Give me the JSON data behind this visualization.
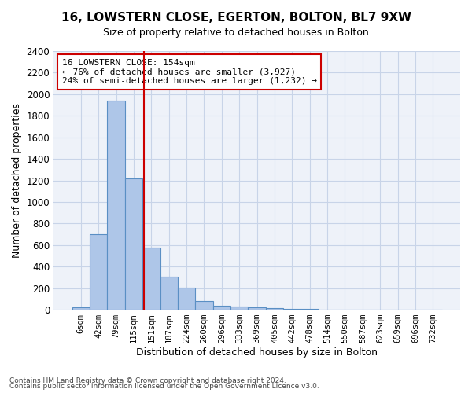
{
  "title1": "16, LOWSTERN CLOSE, EGERTON, BOLTON, BL7 9XW",
  "title2": "Size of property relative to detached houses in Bolton",
  "xlabel": "Distribution of detached houses by size in Bolton",
  "ylabel": "Number of detached properties",
  "bin_labels": [
    "6sqm",
    "42sqm",
    "79sqm",
    "115sqm",
    "151sqm",
    "187sqm",
    "224sqm",
    "260sqm",
    "296sqm",
    "333sqm",
    "369sqm",
    "405sqm",
    "442sqm",
    "478sqm",
    "514sqm",
    "550sqm",
    "587sqm",
    "623sqm",
    "659sqm",
    "696sqm",
    "732sqm"
  ],
  "bar_values": [
    20,
    700,
    1940,
    1220,
    575,
    305,
    205,
    80,
    40,
    28,
    22,
    15,
    8,
    5,
    3,
    2,
    1,
    1,
    1,
    0,
    0
  ],
  "bar_color": "#aec6e8",
  "bar_edge_color": "#5a8fc4",
  "annotation_title": "16 LOWSTERN CLOSE: 154sqm",
  "annotation_line1": "← 76% of detached houses are smaller (3,927)",
  "annotation_line2": "24% of semi-detached houses are larger (1,232) →",
  "vline_color": "#cc0000",
  "ylim": [
    0,
    2400
  ],
  "yticks": [
    0,
    200,
    400,
    600,
    800,
    1000,
    1200,
    1400,
    1600,
    1800,
    2000,
    2200,
    2400
  ],
  "footnote1": "Contains HM Land Registry data © Crown copyright and database right 2024.",
  "footnote2": "Contains public sector information licensed under the Open Government Licence v3.0.",
  "background_color": "#eef2f9",
  "grid_color": "#c8d4e8"
}
